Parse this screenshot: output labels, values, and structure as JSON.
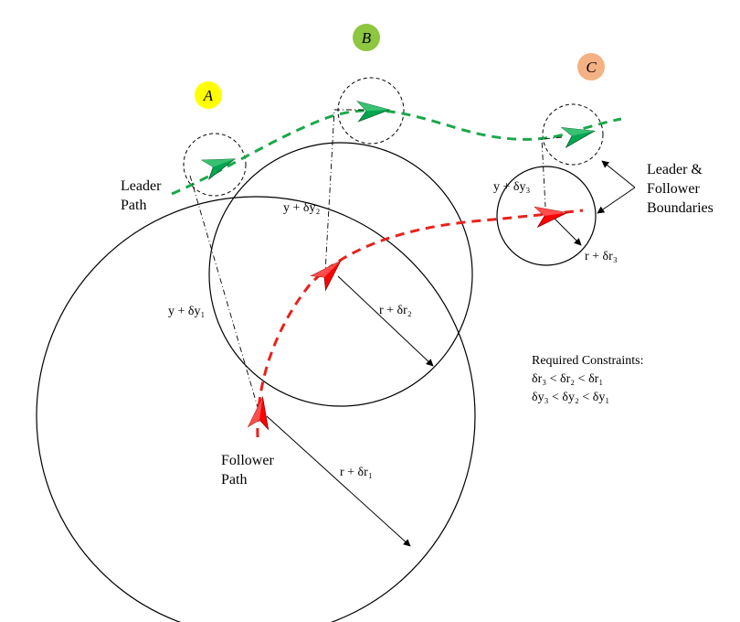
{
  "markers": [
    {
      "id": "A",
      "color": "#ffff00"
    },
    {
      "id": "B",
      "color": "#8dc63f"
    },
    {
      "id": "C",
      "color": "#f4b183"
    }
  ],
  "labels": {
    "leader_path": [
      "Leader",
      "Path"
    ],
    "follower_path": [
      "Follower",
      "Path"
    ],
    "boundaries": [
      "Leader &",
      "Follower",
      "Boundaries"
    ],
    "y1": "y + δy₁",
    "y2": "y + δy₂",
    "y3": "y + δy₃",
    "r1": "r + δr₁",
    "r2": "r + δr₂",
    "r3": "r + δr₃"
  },
  "constraints": {
    "title": "Required Constraints:",
    "line1": "δr₃ < δr₂ < δr₁",
    "line2": "δy₃ < δy₂ < δy₁"
  },
  "colors": {
    "leader": "#00a651",
    "follower": "#ff0000",
    "leader_dash": "#1aa84a",
    "follower_dash": "#e8221b"
  }
}
